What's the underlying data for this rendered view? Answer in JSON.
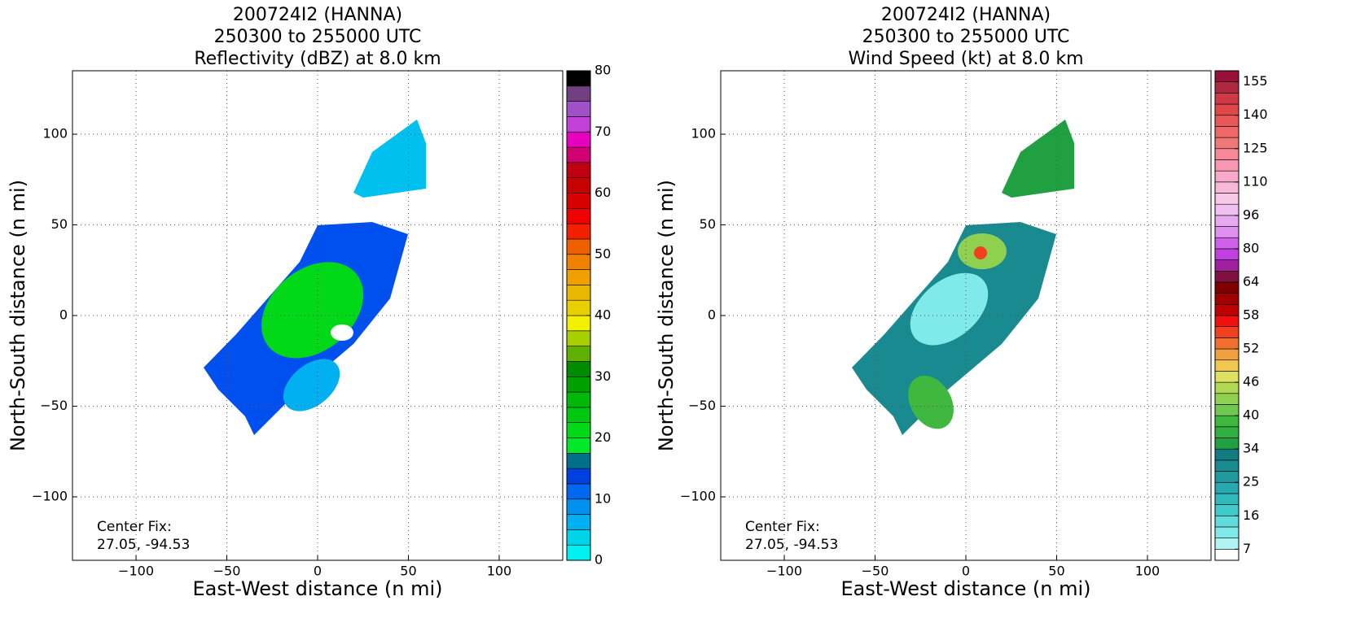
{
  "chart_data": [
    {
      "type": "field",
      "title": [
        "200724I2 (HANNA)",
        "250300 to 255000 UTC",
        "Reflectivity (dBZ) at 8.0 km"
      ],
      "xlabel": "East-West distance (n mi)",
      "ylabel": "North-South distance (n mi)",
      "xlim": [
        -135,
        135
      ],
      "ylim": [
        -135,
        135
      ],
      "xticks": [
        {
          "value": -100,
          "label": "−100"
        },
        {
          "value": -50,
          "label": "−50"
        },
        0,
        50,
        100
      ],
      "yticks": [
        {
          "value": -100,
          "label": "−100"
        },
        {
          "value": -50,
          "label": "−50"
        },
        0,
        50,
        100
      ],
      "grid": true,
      "annotation": [
        "Center Fix:",
        "27.05, -94.53"
      ],
      "colorbar": {
        "clim": [
          0,
          80
        ],
        "ticks": [
          0,
          10,
          20,
          30,
          40,
          50,
          60,
          70,
          80
        ],
        "colors": [
          "#00efef",
          "#00d4e8",
          "#00b0f0",
          "#0090f0",
          "#0068f0",
          "#0040e0",
          "#00708a",
          "#00e828",
          "#00d818",
          "#00c810",
          "#00b808",
          "#00a000",
          "#008c00",
          "#60b000",
          "#a8d000",
          "#f0f000",
          "#e8d000",
          "#e8b800",
          "#f0a000",
          "#f08000",
          "#f06000",
          "#f02000",
          "#f00000",
          "#d80000",
          "#c80000",
          "#c00010",
          "#d00070",
          "#e800c0",
          "#c040d8",
          "#a050c8",
          "#704080",
          "#000000"
        ]
      }
    },
    {
      "type": "field",
      "title": [
        "200724I2 (HANNA)",
        "250300 to 255000 UTC",
        "Wind Speed (kt) at 8.0 km"
      ],
      "xlabel": "East-West distance (n mi)",
      "ylabel": "North-South distance (n mi)",
      "xlim": [
        -135,
        135
      ],
      "ylim": [
        -135,
        135
      ],
      "xticks": [
        {
          "value": -100,
          "label": "−100"
        },
        {
          "value": -50,
          "label": "−50"
        },
        0,
        50,
        100
      ],
      "yticks": [
        {
          "value": -100,
          "label": "−100"
        },
        {
          "value": -50,
          "label": "−50"
        },
        0,
        50,
        100
      ],
      "grid": true,
      "annotation": [
        "Center Fix:",
        "27.05, -94.53"
      ],
      "colorbar": {
        "bounds": [
          4,
          7,
          10,
          13,
          16,
          19,
          22,
          25,
          28,
          31,
          34,
          36,
          38,
          40,
          42,
          44,
          46,
          48,
          50,
          52,
          54,
          56,
          58,
          60,
          62,
          64,
          69,
          75,
          80,
          85,
          90,
          96,
          101,
          105,
          110,
          115,
          120,
          125,
          130,
          135,
          140,
          145,
          150,
          155,
          160
        ],
        "ticks": [
          7,
          16,
          25,
          34,
          40,
          46,
          52,
          58,
          64,
          80,
          96,
          110,
          125,
          140,
          155
        ],
        "colors": [
          "#ffffff",
          "#b0f4f4",
          "#80eaea",
          "#60dcdc",
          "#40caca",
          "#30b8bc",
          "#28a8b0",
          "#20989e",
          "#188a90",
          "#107c80",
          "#20a040",
          "#30b040",
          "#40b840",
          "#70c850",
          "#90d050",
          "#b0d850",
          "#e0e060",
          "#f0c850",
          "#f0a040",
          "#f07030",
          "#f04020",
          "#f01010",
          "#c00000",
          "#a00000",
          "#800000",
          "#801040",
          "#a020a0",
          "#c040e0",
          "#d060e8",
          "#e090f0",
          "#e8a8f0",
          "#f0c0f0",
          "#f8c8e8",
          "#f8b8d8",
          "#f8a8c8",
          "#f898b0",
          "#f88898",
          "#f07878",
          "#f06868",
          "#e85858",
          "#e04848",
          "#d03848",
          "#b02840",
          "#981038"
        ]
      }
    }
  ]
}
